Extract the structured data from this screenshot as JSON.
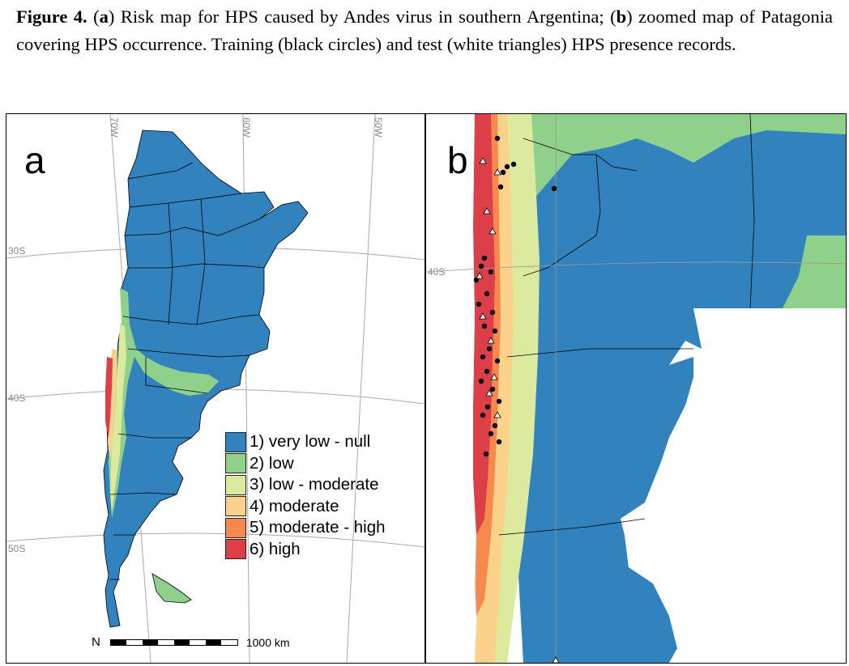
{
  "caption": {
    "figure_label": "Figure 4.",
    "a_label": "a",
    "a_text": ") Risk map for HPS caused by Andes virus in southern Argentina; (",
    "b_label": "b",
    "b_text": ") zoomed map of Patagonia covering HPS occurrence. Training (black circles) and test (white triangles) HPS presence records."
  },
  "panel_a": {
    "letter": "a",
    "graticule": {
      "lon": [
        "70W",
        "60W",
        "50W"
      ],
      "lat": [
        "30S",
        "40S",
        "50S"
      ]
    },
    "scale_label": "1000 km",
    "north_symbol": "N"
  },
  "panel_b": {
    "letter": "b",
    "graticule": {
      "lat": [
        "40S"
      ]
    }
  },
  "legend": {
    "items": [
      {
        "label": "1) very low - null",
        "color": "#3182bd"
      },
      {
        "label": "2) low",
        "color": "#8fd18a"
      },
      {
        "label": "3) low - moderate",
        "color": "#dcea9f"
      },
      {
        "label": "4) moderate",
        "color": "#fbd28a"
      },
      {
        "label": "5) moderate - high",
        "color": "#f8894e"
      },
      {
        "label": "6) high",
        "color": "#dc3f48"
      }
    ]
  },
  "colors": {
    "ocean": "#ffffff",
    "grid": "#aaaaaa",
    "border": "#000000"
  }
}
